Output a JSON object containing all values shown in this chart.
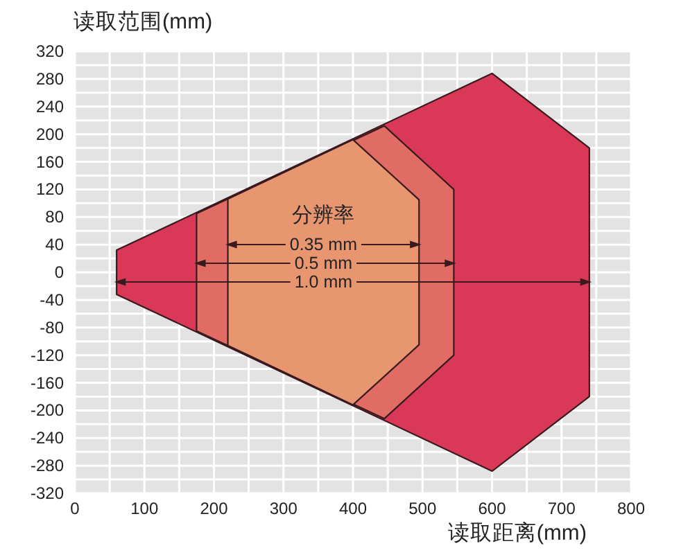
{
  "chart_data": {
    "type": "area",
    "ylabel": "读取范围(mm)",
    "xlabel": "读取距离(mm)",
    "annotations": [
      "分辨率"
    ],
    "xlim": [
      0,
      800
    ],
    "ylim": [
      -320,
      320
    ],
    "xticks": [
      0,
      {
        "value": 50,
        "label": null
      },
      100,
      {
        "value": 150,
        "label": null
      },
      200,
      {
        "value": 250,
        "label": null
      },
      300,
      {
        "value": 350,
        "label": null
      },
      400,
      {
        "value": 450,
        "label": null
      },
      500,
      {
        "value": 550,
        "label": null
      },
      600,
      {
        "value": 650,
        "label": null
      },
      700,
      {
        "value": 750,
        "label": null
      },
      800
    ],
    "yticks": [
      -320,
      {
        "value": -300,
        "label": null
      },
      -280,
      {
        "value": -260,
        "label": null
      },
      -240,
      {
        "value": -220,
        "label": null
      },
      -200,
      {
        "value": -180,
        "label": null
      },
      -160,
      {
        "value": -140,
        "label": null
      },
      -120,
      {
        "value": -100,
        "label": null
      },
      -80,
      {
        "value": -60,
        "label": null
      },
      -40,
      {
        "value": -20,
        "label": null
      },
      0,
      {
        "value": 20,
        "label": null
      },
      40,
      {
        "value": 60,
        "label": null
      },
      80,
      {
        "value": 100,
        "label": null
      },
      120,
      {
        "value": 140,
        "label": null
      },
      160,
      {
        "value": 180,
        "label": null
      },
      200,
      {
        "value": 220,
        "label": null
      },
      240,
      {
        "value": 260,
        "label": null
      },
      280,
      {
        "value": 300,
        "label": null
      },
      320
    ],
    "grid": true,
    "series": [
      {
        "name": "0.35 mm",
        "color": "#e89670",
        "x": [
          220,
          400,
          495
        ],
        "values": [
          106,
          192,
          105
        ]
      },
      {
        "color": "#e89670",
        "x": [
          220,
          400,
          495
        ],
        "values": [
          -106,
          -192,
          -105
        ]
      },
      {
        "name": "0.5 mm",
        "color": "#e06c63",
        "x": [
          175,
          445,
          545
        ],
        "values": [
          85,
          212,
          120
        ]
      },
      {
        "color": "#e06c63",
        "x": [
          175,
          445,
          545
        ],
        "values": [
          -85,
          -212,
          -120
        ]
      },
      {
        "color": "#d93856",
        "x": [
          60,
          600,
          740
        ],
        "values": [
          32,
          288,
          180
        ]
      },
      {
        "name": "1.0 mm",
        "color": "#d93856",
        "x": [
          60,
          600,
          740
        ],
        "values": [
          -32,
          -288,
          -180
        ]
      }
    ]
  }
}
